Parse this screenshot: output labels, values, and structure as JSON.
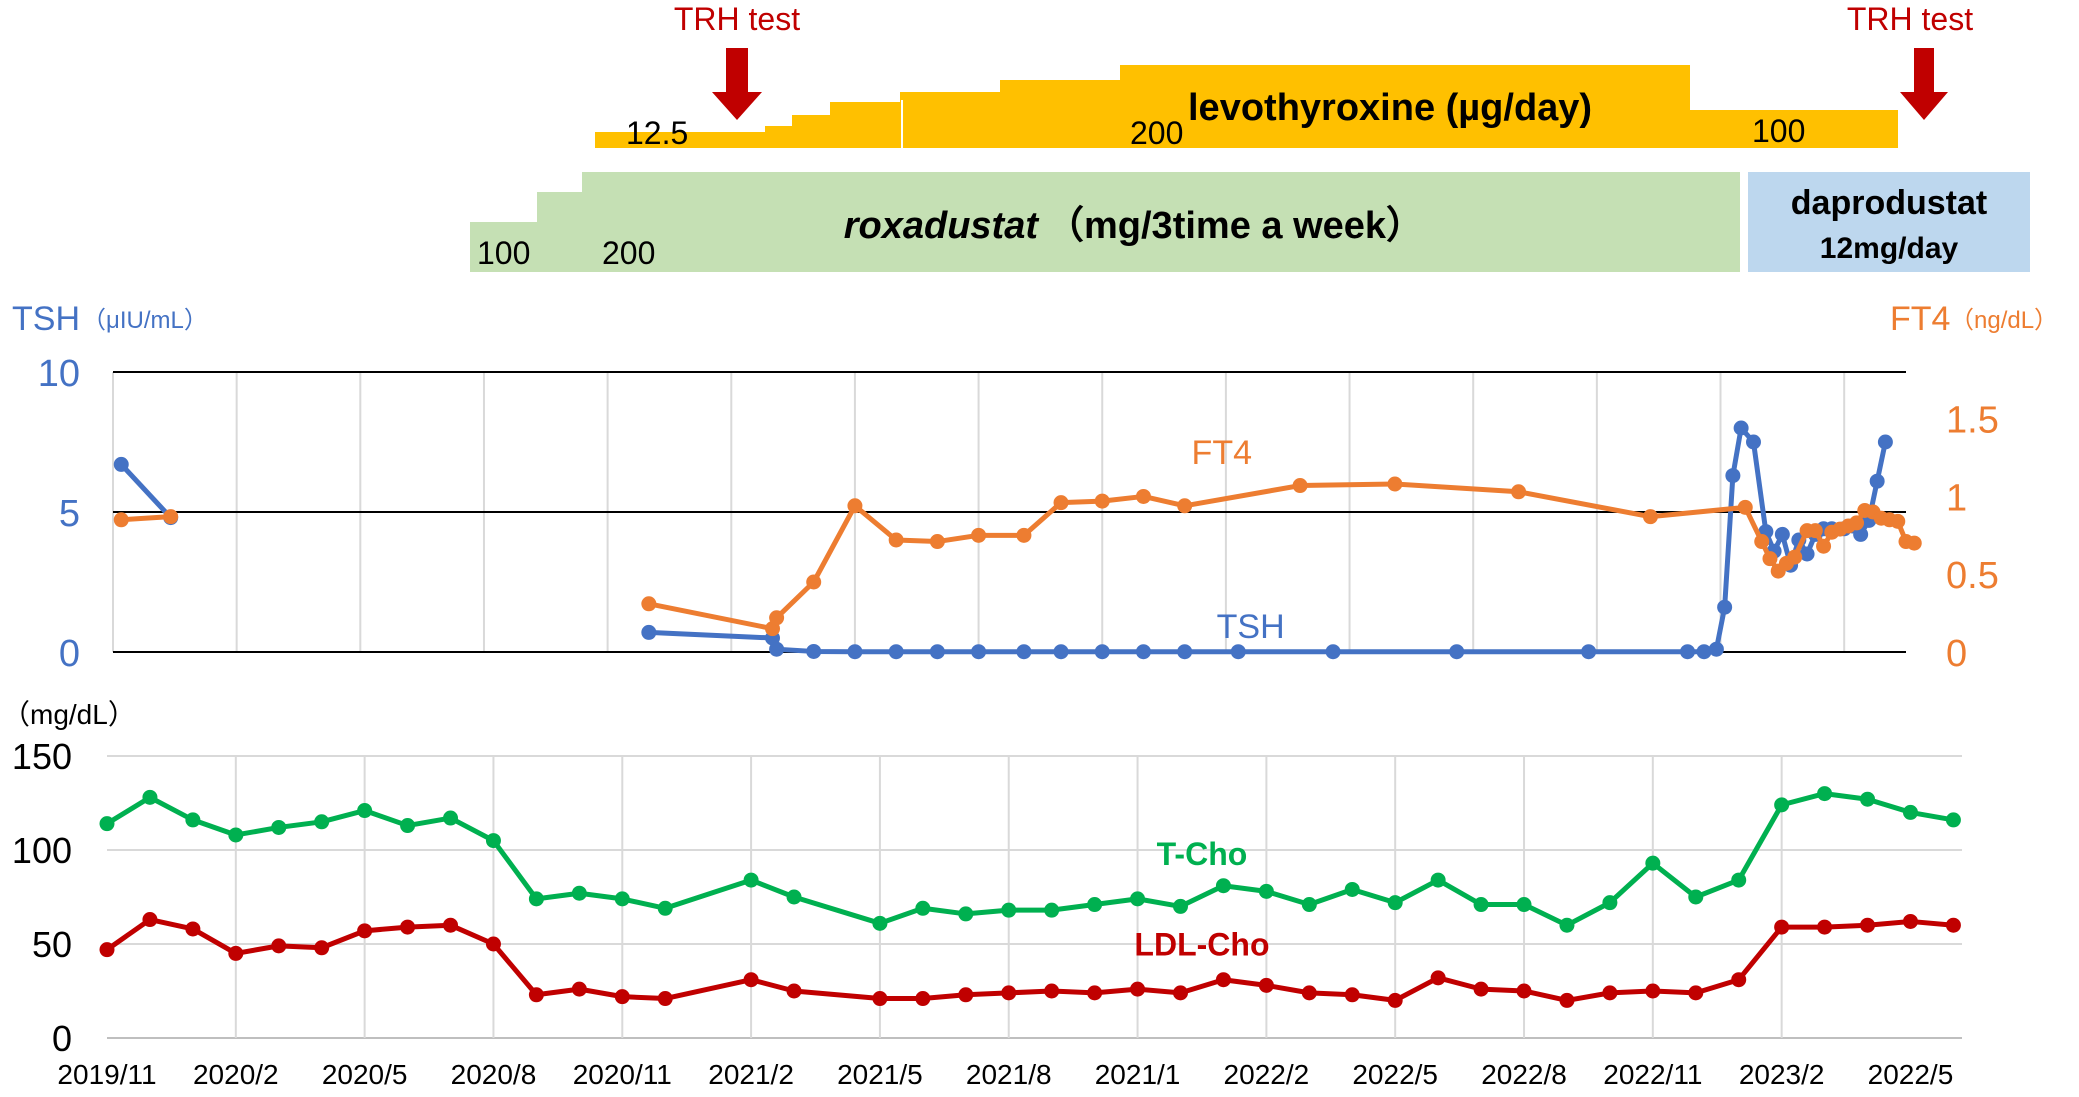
{
  "timeline": {
    "trh_label_left": "TRH test",
    "trh_label_right": "TRH test",
    "levothyroxine_title": "levothyroxine (µg/day)",
    "levo_dose_start": "12.5",
    "levo_dose_peak": "200",
    "levo_dose_end": "100",
    "roxadustat_name": "roxadustat",
    "roxadustat_unit": "（mg/3time a week）",
    "roxa_dose_start": "100",
    "roxa_dose_next": "200",
    "daprodustat_name": "daprodustat",
    "daprodustat_dose": "12mg/day",
    "colors": {
      "levo": "#ffc000",
      "roxa": "#c5e0b4",
      "dapro": "#bdd7ee",
      "arrow": "#c00000"
    }
  },
  "chart_data": [
    {
      "type": "line",
      "panel": "thyroid",
      "xlabel": "",
      "y_left_label_main": "TSH",
      "y_left_label_unit": "（μIU/mL）",
      "y_right_label_main": "FT4",
      "y_right_label_unit": "（ng/dL）",
      "y_left_range": [
        0,
        10
      ],
      "y_left_ticks": [
        "0",
        "5",
        "10"
      ],
      "y_right_range": [
        0,
        1.8
      ],
      "y_right_ticks": [
        "0",
        "0.5",
        "1",
        "1.5"
      ],
      "grid": true,
      "series": [
        {
          "name": "TSH",
          "axis": "left",
          "color": "#4472c4",
          "segments": [
            [
              [
                0.2,
                6.7
              ],
              [
                1.4,
                4.8
              ]
            ],
            [
              [
                13.0,
                0.7
              ],
              [
                16.0,
                0.5
              ],
              [
                16.1,
                0.1
              ],
              [
                17.0,
                0.02
              ],
              [
                18.0,
                0.01
              ],
              [
                19.0,
                0.01
              ],
              [
                20.0,
                0.01
              ],
              [
                21.0,
                0.01
              ],
              [
                22.1,
                0.01
              ],
              [
                23.0,
                0.01
              ],
              [
                24.0,
                0.01
              ],
              [
                25.0,
                0.01
              ],
              [
                26.0,
                0.01
              ],
              [
                27.3,
                0.01
              ],
              [
                29.6,
                0.01
              ],
              [
                32.6,
                0.01
              ],
              [
                35.8,
                0.01
              ],
              [
                38.2,
                0.01
              ],
              [
                38.6,
                0.01
              ],
              [
                38.9,
                0.1
              ],
              [
                39.1,
                1.6
              ],
              [
                39.3,
                6.3
              ],
              [
                39.5,
                8.0
              ],
              [
                39.8,
                7.5
              ],
              [
                40.1,
                4.3
              ],
              [
                40.3,
                3.6
              ],
              [
                40.5,
                4.2
              ],
              [
                40.7,
                3.1
              ],
              [
                40.9,
                4.0
              ],
              [
                41.1,
                3.5
              ],
              [
                41.3,
                4.2
              ],
              [
                41.5,
                4.4
              ],
              [
                41.7,
                4.4
              ],
              [
                42.0,
                4.4
              ],
              [
                42.2,
                4.5
              ],
              [
                42.4,
                4.2
              ],
              [
                42.6,
                4.7
              ],
              [
                42.8,
                6.1
              ],
              [
                43.0,
                7.5
              ]
            ]
          ]
        },
        {
          "name": "FT4",
          "axis": "right",
          "color": "#ed7d31",
          "segments": [
            [
              [
                0.2,
                0.85
              ],
              [
                1.4,
                0.87
              ]
            ],
            [
              [
                13.0,
                0.31
              ],
              [
                16.0,
                0.15
              ],
              [
                16.1,
                0.22
              ],
              [
                17.0,
                0.45
              ],
              [
                18.0,
                0.94
              ],
              [
                19.0,
                0.72
              ],
              [
                20.0,
                0.71
              ],
              [
                21.0,
                0.75
              ],
              [
                22.1,
                0.75
              ],
              [
                23.0,
                0.96
              ],
              [
                24.0,
                0.97
              ],
              [
                25.0,
                1.0
              ],
              [
                26.0,
                0.94
              ],
              [
                28.8,
                1.07
              ],
              [
                31.1,
                1.08
              ],
              [
                34.1,
                1.03
              ],
              [
                37.3,
                0.87
              ],
              [
                39.6,
                0.93
              ],
              [
                40.0,
                0.71
              ],
              [
                40.2,
                0.6
              ],
              [
                40.4,
                0.52
              ],
              [
                40.6,
                0.57
              ],
              [
                40.8,
                0.61
              ],
              [
                41.1,
                0.78
              ],
              [
                41.3,
                0.78
              ],
              [
                41.5,
                0.68
              ],
              [
                41.7,
                0.77
              ],
              [
                41.9,
                0.79
              ],
              [
                42.1,
                0.81
              ],
              [
                42.3,
                0.83
              ],
              [
                42.5,
                0.91
              ],
              [
                42.7,
                0.9
              ],
              [
                42.9,
                0.86
              ],
              [
                43.1,
                0.85
              ],
              [
                43.3,
                0.84
              ],
              [
                43.5,
                0.71
              ],
              [
                43.7,
                0.7
              ]
            ]
          ]
        }
      ],
      "annotations": [
        {
          "text": "FT4",
          "x": 26.9,
          "y": 1.21,
          "axis": "right",
          "color": "#ed7d31"
        },
        {
          "text": "TSH",
          "x": 27.6,
          "y": 0.5,
          "axis": "left",
          "color": "#4472c4"
        }
      ],
      "vlines_x": [
        3,
        6,
        9,
        12,
        15,
        18,
        21,
        24,
        27,
        30,
        33,
        36,
        39,
        42
      ]
    },
    {
      "type": "line",
      "panel": "cholesterol",
      "xlabel": "",
      "y_label": "（mg/dL）",
      "y_range": [
        0,
        150
      ],
      "y_ticks": [
        "0",
        "50",
        "100",
        "150"
      ],
      "x_tick_labels": [
        "2019/11",
        "2020/2",
        "2020/5",
        "2020/8",
        "2020/11",
        "2021/2",
        "2021/5",
        "2021/8",
        "2021/1",
        "2022/2",
        "2022/5",
        "2022/8",
        "2022/11",
        "2023/2",
        "2022/5"
      ],
      "grid": true,
      "series": [
        {
          "name": "T-Cho",
          "color": "#00b050",
          "points": [
            [
              0.0,
              114
            ],
            [
              1.0,
              128
            ],
            [
              2.0,
              116
            ],
            [
              3.0,
              108
            ],
            [
              4.0,
              112
            ],
            [
              5.0,
              115
            ],
            [
              6.0,
              121
            ],
            [
              7.0,
              113
            ],
            [
              8.0,
              117
            ],
            [
              9.0,
              105
            ],
            [
              10.0,
              74
            ],
            [
              11.0,
              77
            ],
            [
              12.0,
              74
            ],
            [
              13.0,
              69
            ],
            [
              15.0,
              84
            ],
            [
              16.0,
              75
            ],
            [
              18.0,
              61
            ],
            [
              19.0,
              69
            ],
            [
              20.0,
              66
            ],
            [
              21.0,
              68
            ],
            [
              22.0,
              68
            ],
            [
              23.0,
              71
            ],
            [
              24.0,
              74
            ],
            [
              25.0,
              70
            ],
            [
              26.0,
              81
            ],
            [
              27.0,
              78
            ],
            [
              28.0,
              71
            ],
            [
              29.0,
              79
            ],
            [
              30.0,
              72
            ],
            [
              31.0,
              84
            ],
            [
              32.0,
              71
            ],
            [
              33.0,
              71
            ],
            [
              34.0,
              60
            ],
            [
              35.0,
              72
            ],
            [
              36.0,
              93
            ],
            [
              37.0,
              75
            ],
            [
              38.0,
              84
            ],
            [
              39.0,
              124
            ],
            [
              40.0,
              130
            ],
            [
              41.0,
              127
            ],
            [
              42.0,
              120
            ],
            [
              43.0,
              116
            ]
          ]
        },
        {
          "name": "LDL-Cho",
          "color": "#c00000",
          "points": [
            [
              0.0,
              47
            ],
            [
              1.0,
              63
            ],
            [
              2.0,
              58
            ],
            [
              3.0,
              45
            ],
            [
              4.0,
              49
            ],
            [
              5.0,
              48
            ],
            [
              6.0,
              57
            ],
            [
              7.0,
              59
            ],
            [
              8.0,
              60
            ],
            [
              9.0,
              50
            ],
            [
              10.0,
              23
            ],
            [
              11.0,
              26
            ],
            [
              12.0,
              22
            ],
            [
              13.0,
              21
            ],
            [
              15.0,
              31
            ],
            [
              16.0,
              25
            ],
            [
              18.0,
              21
            ],
            [
              19.0,
              21
            ],
            [
              20.0,
              23
            ],
            [
              21.0,
              24
            ],
            [
              22.0,
              25
            ],
            [
              23.0,
              24
            ],
            [
              24.0,
              26
            ],
            [
              25.0,
              24
            ],
            [
              26.0,
              31
            ],
            [
              27.0,
              28
            ],
            [
              28.0,
              24
            ],
            [
              29.0,
              23
            ],
            [
              30.0,
              20
            ],
            [
              31.0,
              32
            ],
            [
              32.0,
              26
            ],
            [
              33.0,
              25
            ],
            [
              34.0,
              20
            ],
            [
              35.0,
              24
            ],
            [
              36.0,
              25
            ],
            [
              37.0,
              24
            ],
            [
              38.0,
              31
            ],
            [
              39.0,
              59
            ],
            [
              40.0,
              59
            ],
            [
              41.0,
              60
            ],
            [
              42.0,
              62
            ],
            [
              43.0,
              60
            ]
          ]
        }
      ],
      "annotations": [
        {
          "text": "T-Cho",
          "x": 25.5,
          "y": 92,
          "color": "#00b050"
        },
        {
          "text": "LDL-Cho",
          "x": 25.5,
          "y": 44,
          "color": "#c00000"
        }
      ],
      "vlines_x": [
        3,
        6,
        9,
        12,
        15,
        18,
        21,
        24,
        27,
        30,
        33,
        36,
        39
      ]
    }
  ]
}
